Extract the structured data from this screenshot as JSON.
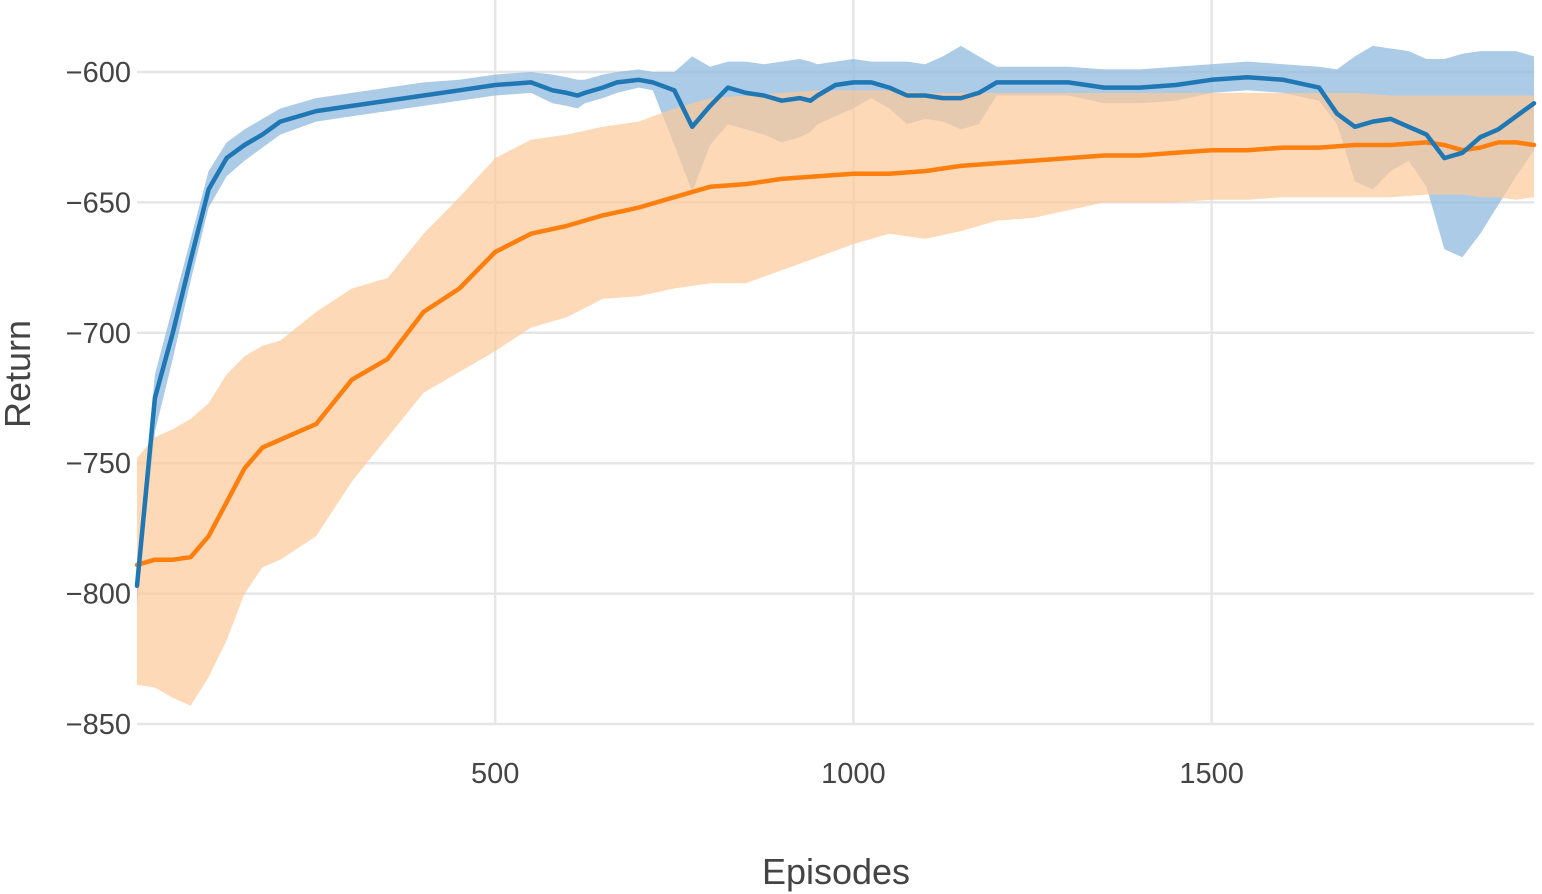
{
  "chart_data": {
    "type": "line",
    "xlabel": "Episodes",
    "ylabel": "Return",
    "xlim": [
      0,
      1950
    ],
    "ylim": [
      -850,
      -600
    ],
    "x_ticks": [
      500,
      1000,
      1500
    ],
    "y_ticks": [
      -850,
      -800,
      -750,
      -700,
      -650,
      -600
    ],
    "x_tick_labels": [
      "500",
      "1000",
      "1500"
    ],
    "y_tick_labels": [
      "−850",
      "−800",
      "−750",
      "−700",
      "−650",
      "−600"
    ],
    "grid": true,
    "legend": "none",
    "series": [
      {
        "color": "#1f77b4",
        "band_color": "#8fb9dd",
        "x": [
          0,
          25,
          50,
          75,
          100,
          125,
          150,
          175,
          200,
          250,
          300,
          350,
          400,
          450,
          500,
          550,
          580,
          600,
          615,
          625,
          650,
          670,
          700,
          720,
          750,
          775,
          800,
          825,
          850,
          875,
          900,
          925,
          940,
          950,
          975,
          1000,
          1025,
          1050,
          1075,
          1100,
          1125,
          1150,
          1175,
          1200,
          1250,
          1300,
          1350,
          1400,
          1450,
          1500,
          1550,
          1600,
          1650,
          1675,
          1700,
          1725,
          1750,
          1775,
          1800,
          1825,
          1850,
          1875,
          1900,
          1925,
          1950
        ],
        "y": [
          -797,
          -725,
          -700,
          -672,
          -645,
          -633,
          -628,
          -624,
          -619,
          -615,
          -613,
          -611,
          -609,
          -607,
          -605,
          -604,
          -607,
          -608,
          -609,
          -608,
          -606,
          -604,
          -603,
          -604,
          -607,
          -621,
          -613,
          -606,
          -608,
          -609,
          -611,
          -610,
          -611,
          -609,
          -605,
          -604,
          -604,
          -606,
          -609,
          -609,
          -610,
          -610,
          -608,
          -604,
          -604,
          -604,
          -606,
          -606,
          -605,
          -603,
          -602,
          -603,
          -606,
          -616,
          -621,
          -619,
          -618,
          -621,
          -624,
          -633,
          -631,
          -625,
          -622,
          -617,
          -612
        ],
        "lower": [
          -805,
          -738,
          -710,
          -680,
          -652,
          -640,
          -634,
          -629,
          -624,
          -619,
          -617,
          -615,
          -613,
          -611,
          -609,
          -608,
          -612,
          -613,
          -614,
          -612,
          -610,
          -608,
          -606,
          -607,
          -628,
          -646,
          -628,
          -620,
          -622,
          -624,
          -627,
          -625,
          -623,
          -620,
          -617,
          -614,
          -610,
          -614,
          -620,
          -618,
          -619,
          -622,
          -620,
          -609,
          -609,
          -609,
          -612,
          -612,
          -611,
          -608,
          -607,
          -608,
          -611,
          -620,
          -642,
          -645,
          -638,
          -634,
          -644,
          -668,
          -671,
          -662,
          -651,
          -640,
          -630
        ],
        "upper": [
          -790,
          -716,
          -690,
          -664,
          -638,
          -627,
          -622,
          -618,
          -614,
          -610,
          -608,
          -606,
          -604,
          -603,
          -601,
          -600,
          -601,
          -602,
          -603,
          -603,
          -601,
          -600,
          -599,
          -600,
          -600,
          -594,
          -598,
          -596,
          -596,
          -597,
          -596,
          -595,
          -596,
          -597,
          -596,
          -595,
          -596,
          -596,
          -596,
          -597,
          -594,
          -590,
          -594,
          -598,
          -598,
          -598,
          -599,
          -599,
          -598,
          -597,
          -596,
          -597,
          -598,
          -599,
          -594,
          -590,
          -591,
          -592,
          -595,
          -595,
          -593,
          -592,
          -592,
          -592,
          -594
        ]
      },
      {
        "color": "#ff7f0e",
        "band_color": "#fdc999",
        "x": [
          0,
          25,
          50,
          75,
          100,
          125,
          150,
          175,
          200,
          250,
          300,
          350,
          400,
          450,
          500,
          550,
          600,
          650,
          700,
          750,
          800,
          850,
          900,
          950,
          1000,
          1050,
          1100,
          1150,
          1200,
          1250,
          1300,
          1350,
          1400,
          1450,
          1500,
          1550,
          1600,
          1650,
          1700,
          1750,
          1800,
          1825,
          1850,
          1875,
          1900,
          1925,
          1950
        ],
        "y": [
          -789,
          -787,
          -787,
          -786,
          -778,
          -765,
          -752,
          -744,
          -741,
          -735,
          -718,
          -710,
          -692,
          -683,
          -669,
          -662,
          -659,
          -655,
          -652,
          -648,
          -644,
          -643,
          -641,
          -640,
          -639,
          -639,
          -638,
          -636,
          -635,
          -634,
          -633,
          -632,
          -632,
          -631,
          -630,
          -630,
          -629,
          -629,
          -628,
          -628,
          -627,
          -628,
          -630,
          -629,
          -627,
          -627,
          -628
        ],
        "lower": [
          -835,
          -836,
          -840,
          -843,
          -832,
          -818,
          -800,
          -790,
          -787,
          -778,
          -757,
          -740,
          -723,
          -715,
          -707,
          -698,
          -694,
          -687,
          -686,
          -683,
          -681,
          -681,
          -676,
          -671,
          -666,
          -662,
          -664,
          -661,
          -657,
          -656,
          -653,
          -650,
          -650,
          -650,
          -649,
          -649,
          -648,
          -648,
          -648,
          -648,
          -647,
          -647,
          -647,
          -648,
          -648,
          -649,
          -648
        ],
        "upper": [
          -748,
          -740,
          -737,
          -733,
          -727,
          -716,
          -709,
          -705,
          -703,
          -692,
          -683,
          -679,
          -662,
          -648,
          -633,
          -626,
          -624,
          -621,
          -619,
          -614,
          -610,
          -609,
          -608,
          -607,
          -607,
          -607,
          -608,
          -608,
          -608,
          -608,
          -608,
          -608,
          -608,
          -608,
          -608,
          -608,
          -608,
          -608,
          -608,
          -609,
          -609,
          -609,
          -609,
          -609,
          -609,
          -609,
          -609
        ]
      }
    ]
  }
}
